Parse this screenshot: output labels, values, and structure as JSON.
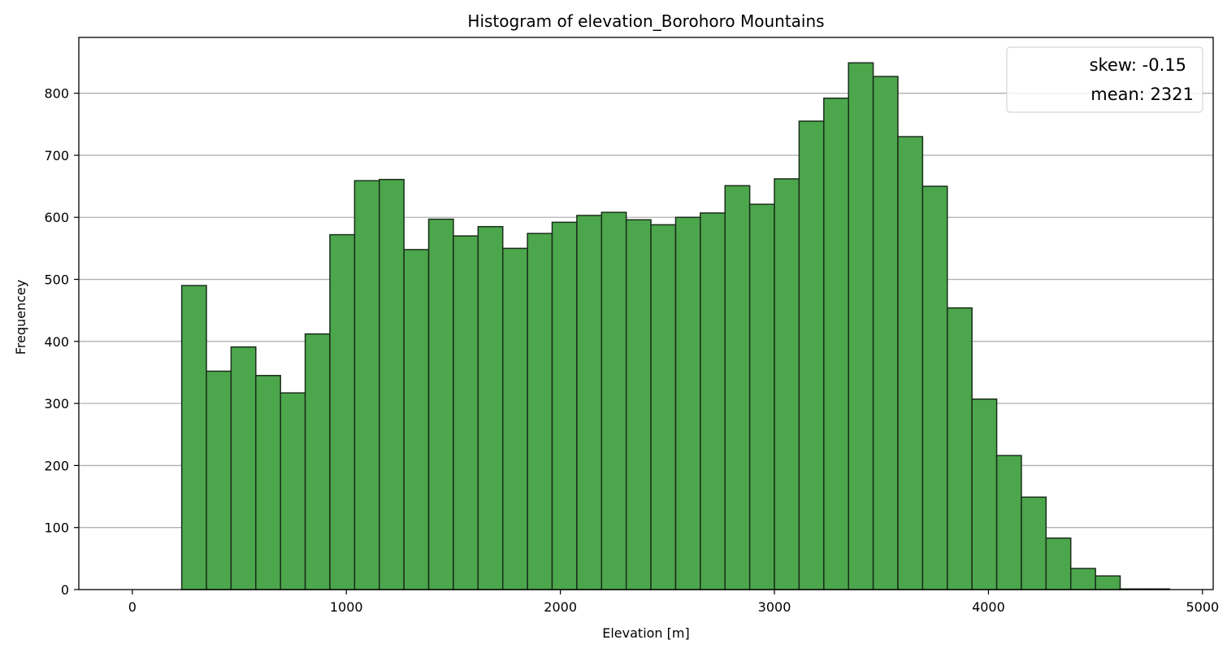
{
  "chart_data": {
    "type": "bar",
    "title": "Histogram of elevation_Borohoro Mountains",
    "xlabel": "Elevation [m]",
    "ylabel": "Frequencey",
    "xlim": [
      -250,
      5050
    ],
    "ylim": [
      0,
      890
    ],
    "xticks": [
      0,
      1000,
      2000,
      3000,
      4000,
      5000
    ],
    "yticks": [
      0,
      100,
      200,
      300,
      400,
      500,
      600,
      700,
      800
    ],
    "grid": "y",
    "bar_color": "#4ca64c",
    "edge_color": "#1a2e1a",
    "bin_edges": [
      0,
      115.4,
      230.8,
      346.2,
      461.5,
      576.9,
      692.3,
      807.7,
      923.1,
      1038.5,
      1153.8,
      1269.2,
      1384.6,
      1500.0,
      1615.4,
      1730.8,
      1846.2,
      1961.5,
      2076.9,
      2192.3,
      2307.7,
      2423.1,
      2538.5,
      2653.8,
      2769.2,
      2884.6,
      3000.0,
      3115.4,
      3230.8,
      3346.2,
      3461.5,
      3576.9,
      3692.3,
      3807.7,
      3923.1,
      4038.5,
      4153.8,
      4269.2,
      4384.6,
      4500.0,
      4615.4,
      4730.8,
      4846.2
    ],
    "counts": [
      0,
      0,
      490,
      352,
      391,
      345,
      317,
      412,
      572,
      659,
      661,
      548,
      597,
      570,
      585,
      550,
      574,
      592,
      603,
      608,
      596,
      588,
      600,
      607,
      651,
      621,
      662,
      755,
      792,
      849,
      827,
      730,
      650,
      454,
      307,
      216,
      149,
      83,
      34,
      22,
      1,
      1
    ],
    "legend": {
      "location": "upper right",
      "entries": [
        "skew: -0.15",
        "mean: 2321"
      ]
    }
  }
}
